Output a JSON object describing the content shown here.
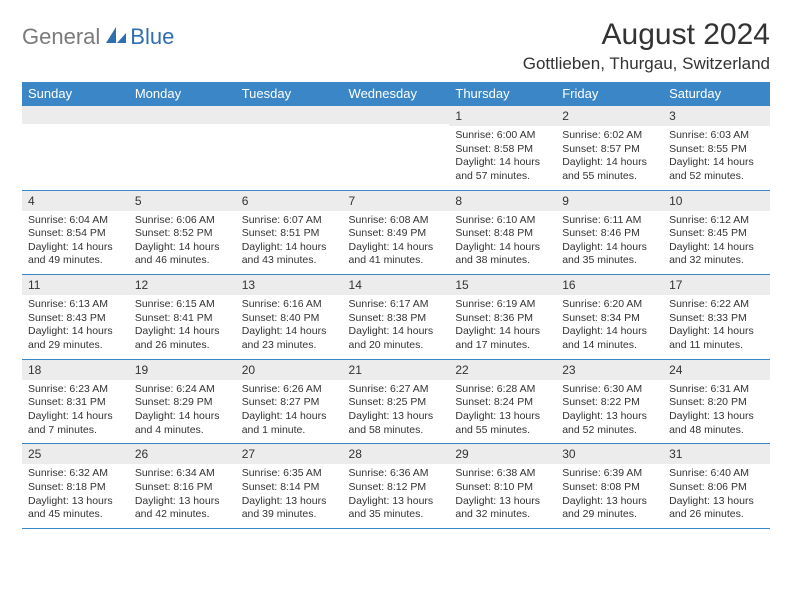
{
  "brand": {
    "gray": "General",
    "blue": "Blue"
  },
  "title": "August 2024",
  "location": "Gottlieben, Thurgau, Switzerland",
  "colors": {
    "header_bg": "#3b86c6",
    "header_text": "#ffffff",
    "daynum_bg": "#ececec",
    "rule": "#3b86c6",
    "logo_gray": "#7b7b7b",
    "logo_blue": "#2f6fb0"
  },
  "weekdays": [
    "Sunday",
    "Monday",
    "Tuesday",
    "Wednesday",
    "Thursday",
    "Friday",
    "Saturday"
  ],
  "weeks": [
    [
      {
        "n": "",
        "sunrise": "",
        "sunset": "",
        "daylight": ""
      },
      {
        "n": "",
        "sunrise": "",
        "sunset": "",
        "daylight": ""
      },
      {
        "n": "",
        "sunrise": "",
        "sunset": "",
        "daylight": ""
      },
      {
        "n": "",
        "sunrise": "",
        "sunset": "",
        "daylight": ""
      },
      {
        "n": "1",
        "sunrise": "Sunrise: 6:00 AM",
        "sunset": "Sunset: 8:58 PM",
        "daylight": "Daylight: 14 hours and 57 minutes."
      },
      {
        "n": "2",
        "sunrise": "Sunrise: 6:02 AM",
        "sunset": "Sunset: 8:57 PM",
        "daylight": "Daylight: 14 hours and 55 minutes."
      },
      {
        "n": "3",
        "sunrise": "Sunrise: 6:03 AM",
        "sunset": "Sunset: 8:55 PM",
        "daylight": "Daylight: 14 hours and 52 minutes."
      }
    ],
    [
      {
        "n": "4",
        "sunrise": "Sunrise: 6:04 AM",
        "sunset": "Sunset: 8:54 PM",
        "daylight": "Daylight: 14 hours and 49 minutes."
      },
      {
        "n": "5",
        "sunrise": "Sunrise: 6:06 AM",
        "sunset": "Sunset: 8:52 PM",
        "daylight": "Daylight: 14 hours and 46 minutes."
      },
      {
        "n": "6",
        "sunrise": "Sunrise: 6:07 AM",
        "sunset": "Sunset: 8:51 PM",
        "daylight": "Daylight: 14 hours and 43 minutes."
      },
      {
        "n": "7",
        "sunrise": "Sunrise: 6:08 AM",
        "sunset": "Sunset: 8:49 PM",
        "daylight": "Daylight: 14 hours and 41 minutes."
      },
      {
        "n": "8",
        "sunrise": "Sunrise: 6:10 AM",
        "sunset": "Sunset: 8:48 PM",
        "daylight": "Daylight: 14 hours and 38 minutes."
      },
      {
        "n": "9",
        "sunrise": "Sunrise: 6:11 AM",
        "sunset": "Sunset: 8:46 PM",
        "daylight": "Daylight: 14 hours and 35 minutes."
      },
      {
        "n": "10",
        "sunrise": "Sunrise: 6:12 AM",
        "sunset": "Sunset: 8:45 PM",
        "daylight": "Daylight: 14 hours and 32 minutes."
      }
    ],
    [
      {
        "n": "11",
        "sunrise": "Sunrise: 6:13 AM",
        "sunset": "Sunset: 8:43 PM",
        "daylight": "Daylight: 14 hours and 29 minutes."
      },
      {
        "n": "12",
        "sunrise": "Sunrise: 6:15 AM",
        "sunset": "Sunset: 8:41 PM",
        "daylight": "Daylight: 14 hours and 26 minutes."
      },
      {
        "n": "13",
        "sunrise": "Sunrise: 6:16 AM",
        "sunset": "Sunset: 8:40 PM",
        "daylight": "Daylight: 14 hours and 23 minutes."
      },
      {
        "n": "14",
        "sunrise": "Sunrise: 6:17 AM",
        "sunset": "Sunset: 8:38 PM",
        "daylight": "Daylight: 14 hours and 20 minutes."
      },
      {
        "n": "15",
        "sunrise": "Sunrise: 6:19 AM",
        "sunset": "Sunset: 8:36 PM",
        "daylight": "Daylight: 14 hours and 17 minutes."
      },
      {
        "n": "16",
        "sunrise": "Sunrise: 6:20 AM",
        "sunset": "Sunset: 8:34 PM",
        "daylight": "Daylight: 14 hours and 14 minutes."
      },
      {
        "n": "17",
        "sunrise": "Sunrise: 6:22 AM",
        "sunset": "Sunset: 8:33 PM",
        "daylight": "Daylight: 14 hours and 11 minutes."
      }
    ],
    [
      {
        "n": "18",
        "sunrise": "Sunrise: 6:23 AM",
        "sunset": "Sunset: 8:31 PM",
        "daylight": "Daylight: 14 hours and 7 minutes."
      },
      {
        "n": "19",
        "sunrise": "Sunrise: 6:24 AM",
        "sunset": "Sunset: 8:29 PM",
        "daylight": "Daylight: 14 hours and 4 minutes."
      },
      {
        "n": "20",
        "sunrise": "Sunrise: 6:26 AM",
        "sunset": "Sunset: 8:27 PM",
        "daylight": "Daylight: 14 hours and 1 minute."
      },
      {
        "n": "21",
        "sunrise": "Sunrise: 6:27 AM",
        "sunset": "Sunset: 8:25 PM",
        "daylight": "Daylight: 13 hours and 58 minutes."
      },
      {
        "n": "22",
        "sunrise": "Sunrise: 6:28 AM",
        "sunset": "Sunset: 8:24 PM",
        "daylight": "Daylight: 13 hours and 55 minutes."
      },
      {
        "n": "23",
        "sunrise": "Sunrise: 6:30 AM",
        "sunset": "Sunset: 8:22 PM",
        "daylight": "Daylight: 13 hours and 52 minutes."
      },
      {
        "n": "24",
        "sunrise": "Sunrise: 6:31 AM",
        "sunset": "Sunset: 8:20 PM",
        "daylight": "Daylight: 13 hours and 48 minutes."
      }
    ],
    [
      {
        "n": "25",
        "sunrise": "Sunrise: 6:32 AM",
        "sunset": "Sunset: 8:18 PM",
        "daylight": "Daylight: 13 hours and 45 minutes."
      },
      {
        "n": "26",
        "sunrise": "Sunrise: 6:34 AM",
        "sunset": "Sunset: 8:16 PM",
        "daylight": "Daylight: 13 hours and 42 minutes."
      },
      {
        "n": "27",
        "sunrise": "Sunrise: 6:35 AM",
        "sunset": "Sunset: 8:14 PM",
        "daylight": "Daylight: 13 hours and 39 minutes."
      },
      {
        "n": "28",
        "sunrise": "Sunrise: 6:36 AM",
        "sunset": "Sunset: 8:12 PM",
        "daylight": "Daylight: 13 hours and 35 minutes."
      },
      {
        "n": "29",
        "sunrise": "Sunrise: 6:38 AM",
        "sunset": "Sunset: 8:10 PM",
        "daylight": "Daylight: 13 hours and 32 minutes."
      },
      {
        "n": "30",
        "sunrise": "Sunrise: 6:39 AM",
        "sunset": "Sunset: 8:08 PM",
        "daylight": "Daylight: 13 hours and 29 minutes."
      },
      {
        "n": "31",
        "sunrise": "Sunrise: 6:40 AM",
        "sunset": "Sunset: 8:06 PM",
        "daylight": "Daylight: 13 hours and 26 minutes."
      }
    ]
  ]
}
